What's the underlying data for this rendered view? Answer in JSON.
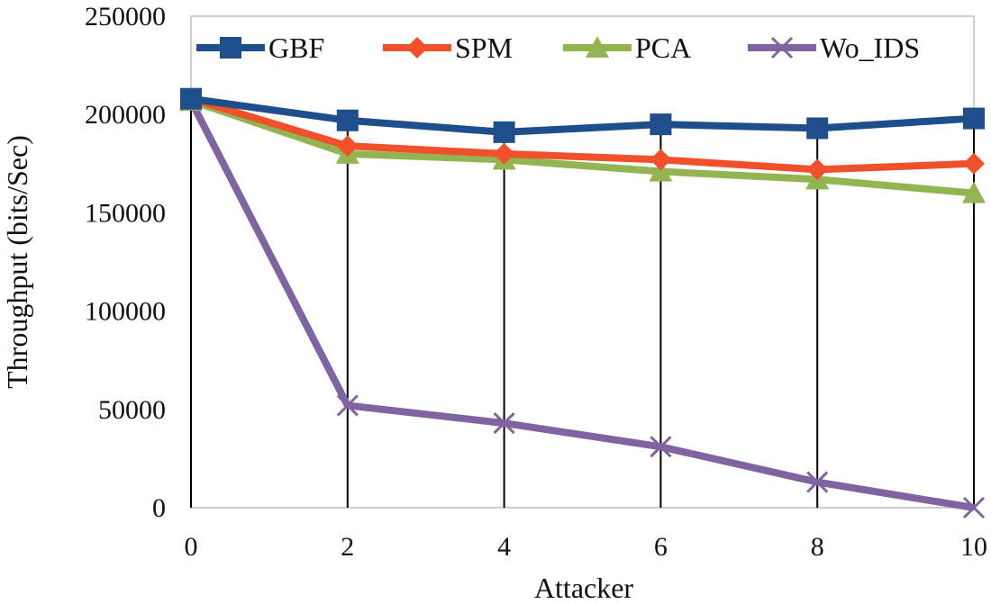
{
  "chart_data": {
    "type": "line",
    "title": "",
    "xlabel": "Attacker",
    "ylabel": "Throughput (bits/Sec)",
    "x": [
      0,
      2,
      4,
      6,
      8,
      10
    ],
    "x_tick_labels": [
      "0",
      "2",
      "4",
      "6",
      "8",
      "10"
    ],
    "xlim": [
      0,
      10
    ],
    "ylim": [
      0,
      250000
    ],
    "y_ticks": [
      0,
      50000,
      100000,
      150000,
      200000,
      250000
    ],
    "y_tick_labels": [
      "0",
      "50000",
      "100000",
      "150000",
      "200000",
      "250000"
    ],
    "legend_position": "top",
    "series": [
      {
        "name": "GBF",
        "color": "#1f4e8c",
        "marker": "square",
        "values": [
          208000,
          197000,
          191000,
          195000,
          193000,
          198000
        ]
      },
      {
        "name": "SPM",
        "color": "#f0502a",
        "marker": "diamond",
        "values": [
          208000,
          184000,
          180000,
          177000,
          172000,
          175000
        ]
      },
      {
        "name": "PCA",
        "color": "#92b552",
        "marker": "triangle",
        "values": [
          207000,
          180000,
          177000,
          171000,
          167000,
          160000
        ]
      },
      {
        "name": "Wo_IDS",
        "color": "#8064a2",
        "marker": "x",
        "values": [
          207000,
          52000,
          43000,
          31000,
          13000,
          0
        ]
      }
    ]
  }
}
